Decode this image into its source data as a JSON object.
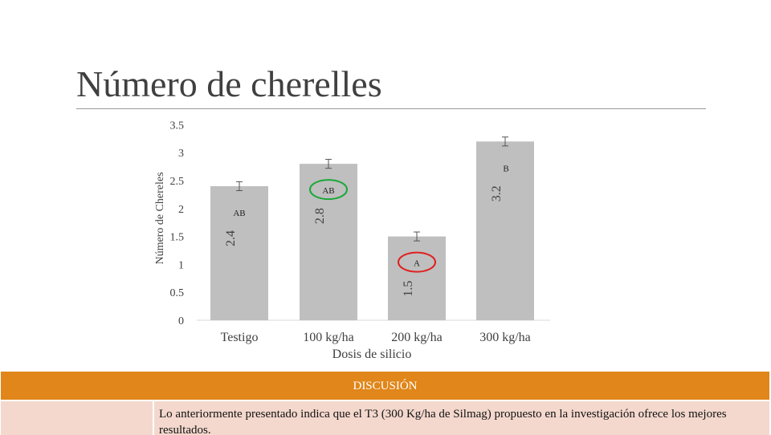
{
  "slide": {
    "title": "Número de cherelles"
  },
  "chart_data": {
    "type": "bar",
    "categories": [
      "Testigo",
      "100 kg/ha",
      "200 kg/ha",
      "300 kg/ha"
    ],
    "values": [
      2.4,
      2.8,
      1.5,
      3.2
    ],
    "data_labels": [
      "2.4",
      "2.8",
      "1.5",
      "3.2"
    ],
    "error": [
      0.08,
      0.08,
      0.08,
      0.08
    ],
    "significance": [
      "AB",
      "AB",
      "A",
      "B"
    ],
    "circled": [
      false,
      true,
      true,
      false
    ],
    "circle_colors": [
      "",
      "#1aa83b",
      "#e02020",
      ""
    ],
    "xlabel": "Dosis de silicio",
    "ylabel": "Número de Chereles",
    "yticks": [
      "0",
      "0.5",
      "1",
      "1.5",
      "2",
      "2.5",
      "3",
      "3.5"
    ],
    "ylim": [
      0,
      3.5
    ],
    "grid": false,
    "bar_color": "#bfbfbf"
  },
  "discussion": {
    "header": "DISCUSIÓN",
    "text": "Lo anteriormente presentado indica que el T3 (300 Kg/ha de Silmag) propuesto en la investigación ofrece los mejores resultados.",
    "header_color": "#e0861a",
    "cell_color": "#f4d8cd"
  }
}
